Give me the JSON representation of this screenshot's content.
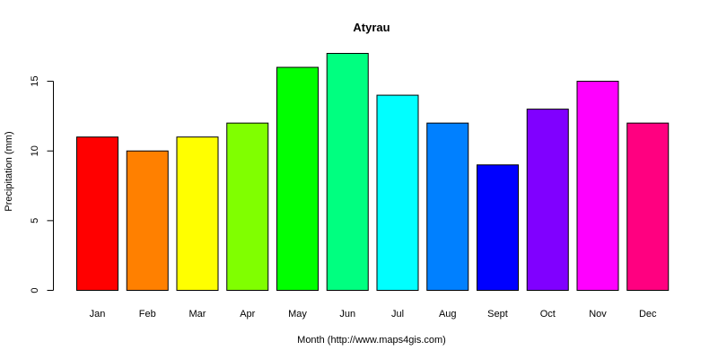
{
  "chart_data": {
    "type": "bar",
    "title": "Atyrau",
    "xlabel": "Month (http://www.maps4gis.com)",
    "ylabel": "Precipitation (mm)",
    "categories": [
      "Jan",
      "Feb",
      "Mar",
      "Apr",
      "May",
      "Jun",
      "Jul",
      "Aug",
      "Sept",
      "Oct",
      "Nov",
      "Dec"
    ],
    "values": [
      11,
      10,
      11,
      12,
      16,
      17,
      14,
      12,
      9,
      13,
      15,
      12
    ],
    "colors": [
      "#FF0000",
      "#FF8000",
      "#FFFF00",
      "#80FF00",
      "#00FF00",
      "#00FF80",
      "#00FFFF",
      "#0080FF",
      "#0000FF",
      "#8000FF",
      "#FF00FF",
      "#FF0080"
    ],
    "yticks": [
      0,
      5,
      10,
      15
    ],
    "ylim": [
      0,
      17
    ],
    "grid": false,
    "legend": false
  }
}
